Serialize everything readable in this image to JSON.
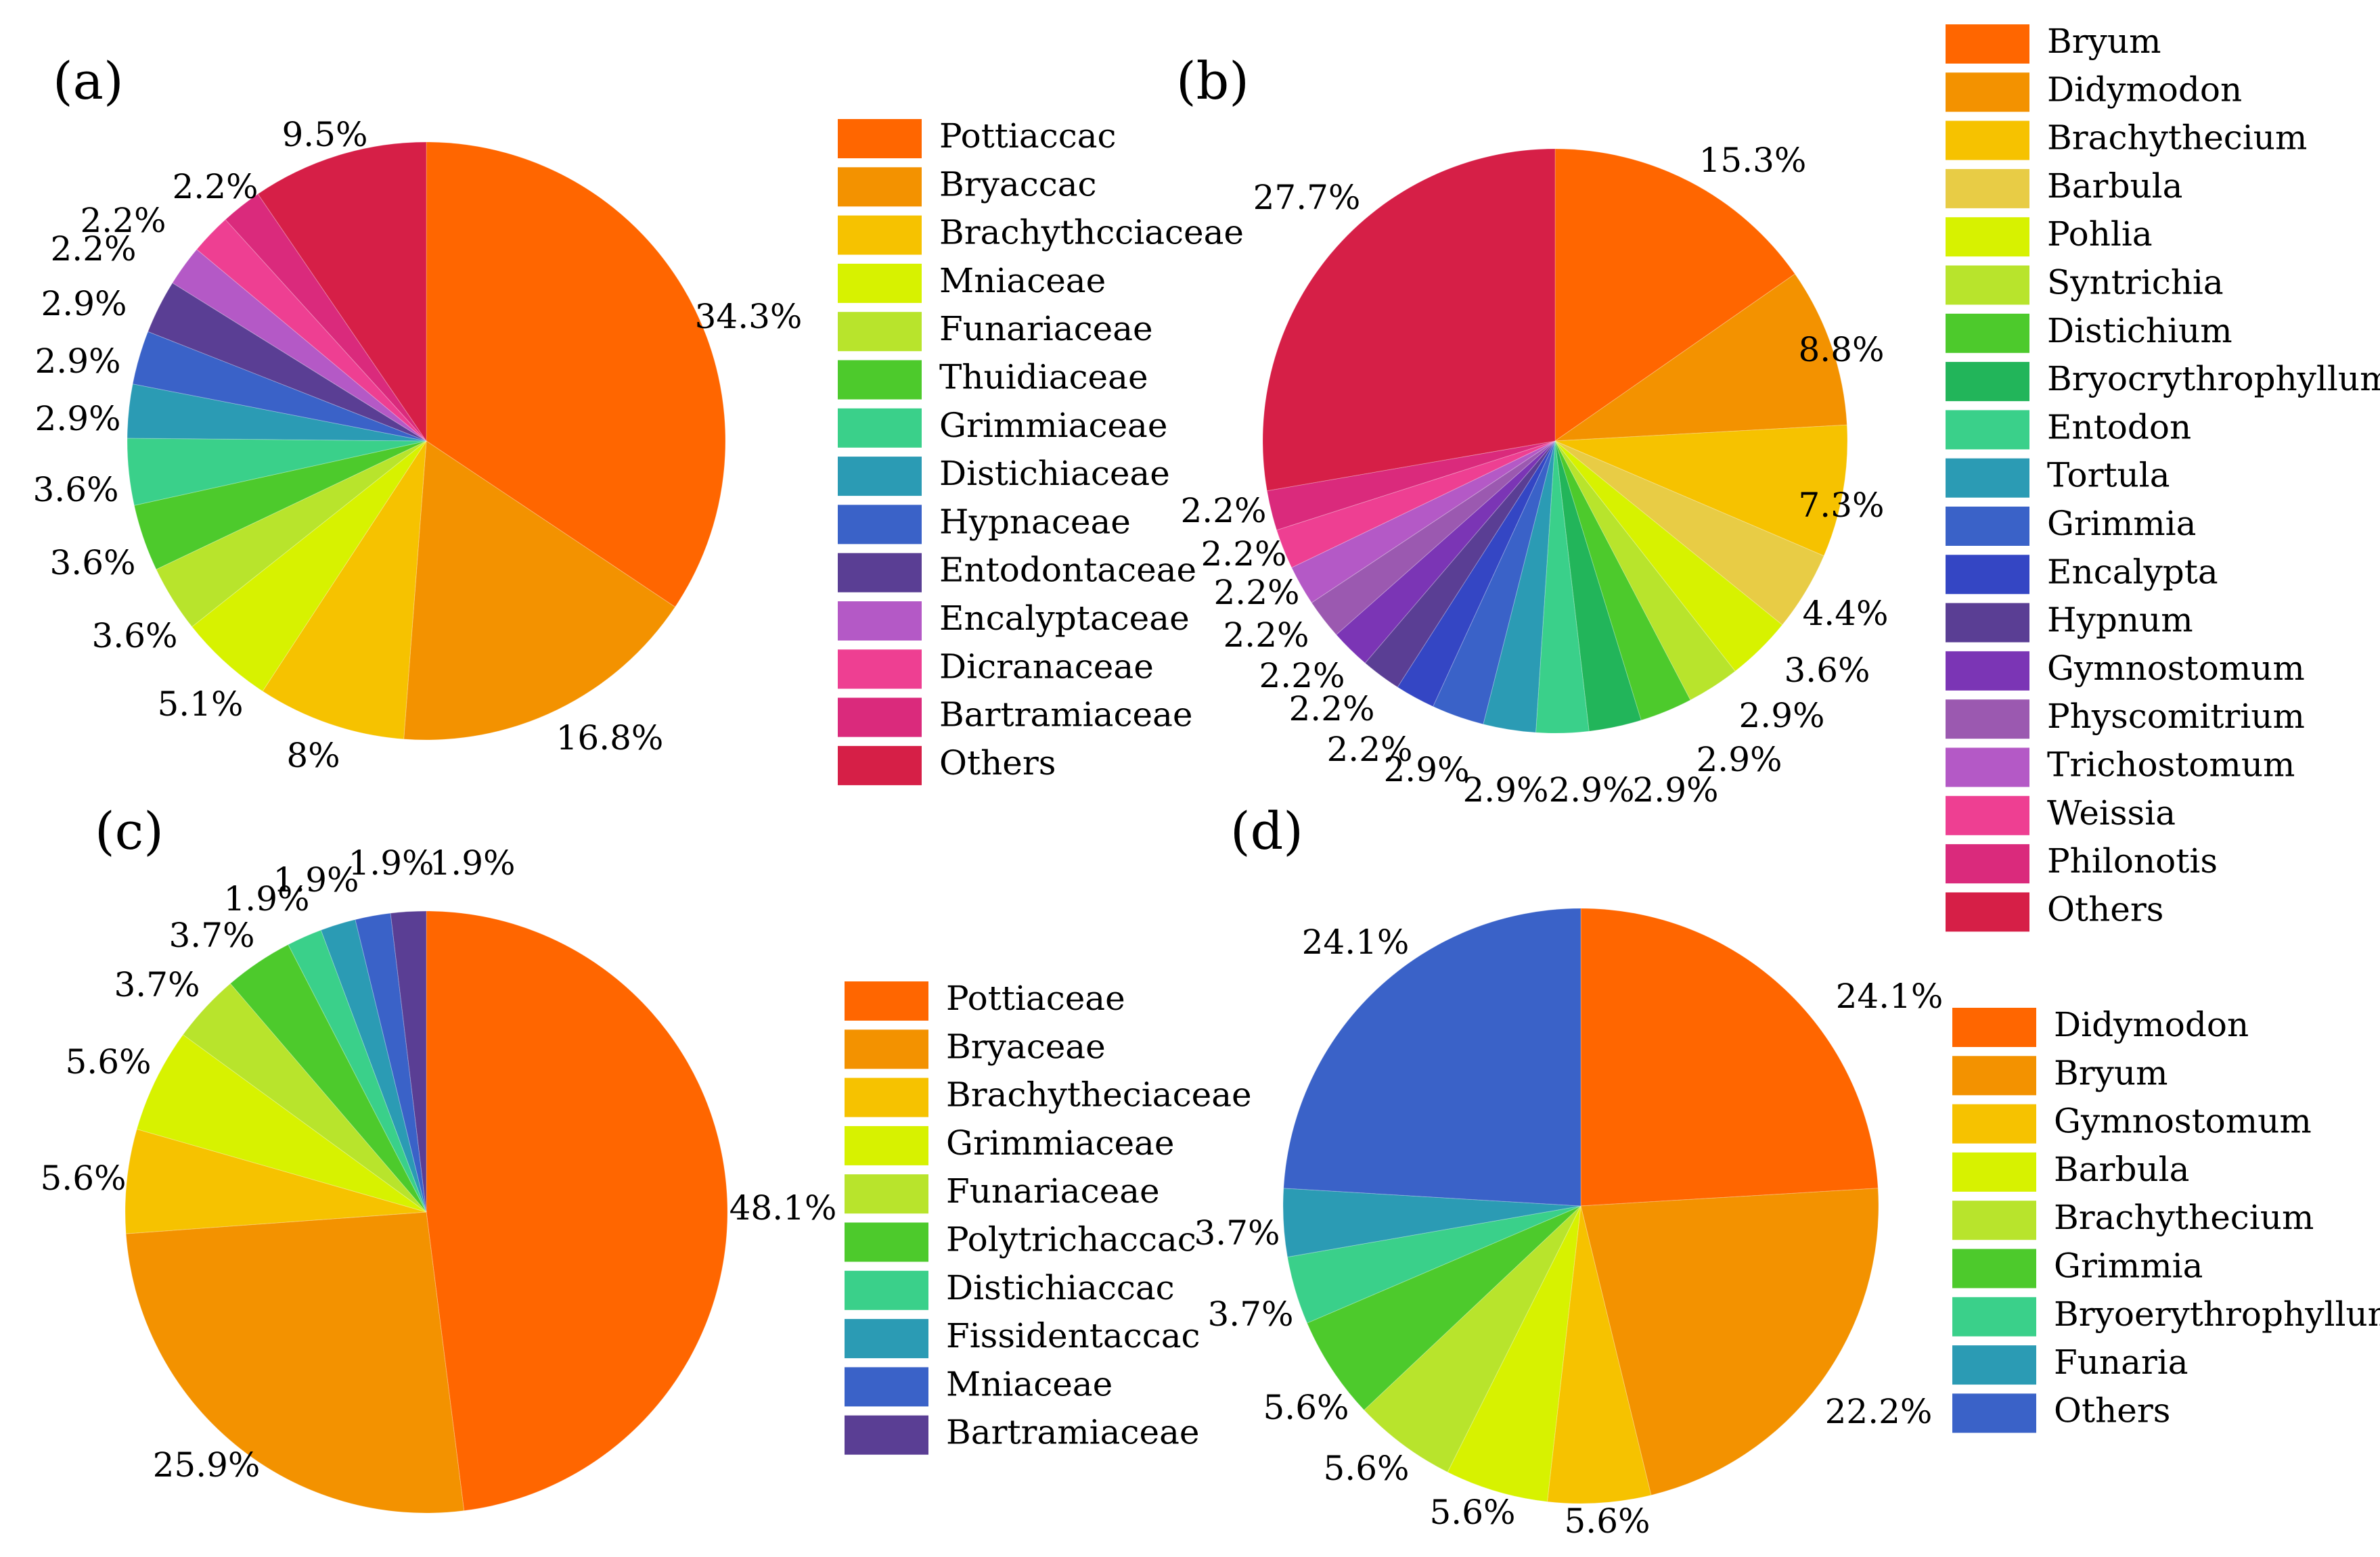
{
  "chart_data": [
    {
      "type": "pie",
      "panel": "(a)",
      "unit": "%",
      "slices": [
        {
          "label": "Pottiaccac",
          "value": 34.3,
          "display": "34.3%",
          "color": "#FF6600"
        },
        {
          "label": "Bryaccac",
          "value": 16.8,
          "display": "16.8%",
          "color": "#F39200"
        },
        {
          "label": "Brachythcciaceae",
          "value": 8,
          "display": "8%",
          "color": "#F6C200"
        },
        {
          "label": "Mniaceae",
          "value": 5.1,
          "display": "5.1%",
          "color": "#D7F200"
        },
        {
          "label": "Funariaceae",
          "value": 3.6,
          "display": "3.6%",
          "color": "#B8E42C"
        },
        {
          "label": "Thuidiaceae",
          "value": 3.6,
          "display": "3.6%",
          "color": "#4DCA2C"
        },
        {
          "label": "Grimmiaceae",
          "value": 3.6,
          "display": "3.6%",
          "color": "#3AD08A"
        },
        {
          "label": "Distichiaceae",
          "value": 2.9,
          "display": "2.9%",
          "color": "#2B9BB4"
        },
        {
          "label": "Hypnaceae",
          "value": 2.9,
          "display": "2.9%",
          "color": "#3A62C8"
        },
        {
          "label": "Entodontaceae",
          "value": 2.9,
          "display": "2.9%",
          "color": "#5A3E94"
        },
        {
          "label": "Encalyptaceae",
          "value": 2.2,
          "display": "2.2%",
          "color": "#B459C6"
        },
        {
          "label": "Dicranaceae",
          "value": 2.2,
          "display": "2.2%",
          "color": "#EE3F92"
        },
        {
          "label": "Bartramiaceae",
          "value": 2.2,
          "display": "2.2%",
          "color": "#DA2A7C"
        },
        {
          "label": "Others",
          "value": 9.5,
          "display": "9.5%",
          "color": "#D61F47"
        }
      ]
    },
    {
      "type": "pie",
      "panel": "(b)",
      "unit": "%",
      "slices": [
        {
          "label": "Bryum",
          "value": 15.3,
          "display": "15.3%",
          "color": "#FF6600"
        },
        {
          "label": "Didymodon",
          "value": 8.8,
          "display": "8.8%",
          "color": "#F39200"
        },
        {
          "label": "Brachythecium",
          "value": 7.3,
          "display": "7.3%",
          "color": "#F6C200"
        },
        {
          "label": "Barbula",
          "value": 4.4,
          "display": "4.4%",
          "color": "#E8CC45"
        },
        {
          "label": "Pohlia",
          "value": 3.6,
          "display": "3.6%",
          "color": "#D7F200"
        },
        {
          "label": "Syntrichia",
          "value": 2.9,
          "display": "2.9%",
          "color": "#B8E42C"
        },
        {
          "label": "Distichium",
          "value": 2.9,
          "display": "2.9%",
          "color": "#4DCA2C"
        },
        {
          "label": "Bryocrythrophyllum",
          "value": 2.9,
          "display": "2.9%",
          "color": "#22B55A"
        },
        {
          "label": "Entodon",
          "value": 2.9,
          "display": "2.9%",
          "color": "#3AD08A"
        },
        {
          "label": "Tortula",
          "value": 2.9,
          "display": "2.9%",
          "color": "#2B9BB4"
        },
        {
          "label": "Grimmia",
          "value": 2.9,
          "display": "2.9%",
          "color": "#3A62C8"
        },
        {
          "label": "Encalypta",
          "value": 2.2,
          "display": "2.2%",
          "color": "#3446C4"
        },
        {
          "label": "Hypnum",
          "value": 2.2,
          "display": "2.2%",
          "color": "#5A3E94"
        },
        {
          "label": "Gymnostomum",
          "value": 2.2,
          "display": "2.2%",
          "color": "#7B35B5"
        },
        {
          "label": "Physcomitrium",
          "value": 2.2,
          "display": "2.2%",
          "color": "#9B59B0"
        },
        {
          "label": "Trichostomum",
          "value": 2.2,
          "display": "2.2%",
          "color": "#B459C6"
        },
        {
          "label": "Weissia",
          "value": 2.2,
          "display": "2.2%",
          "color": "#EE3F92"
        },
        {
          "label": "Philonotis",
          "value": 2.2,
          "display": "2.2%",
          "color": "#DA2A7C"
        },
        {
          "label": "Others",
          "value": 27.7,
          "display": "27.7%",
          "color": "#D61F47"
        }
      ]
    },
    {
      "type": "pie",
      "panel": "(c)",
      "unit": "%",
      "slices": [
        {
          "label": "Pottiaceae",
          "value": 48.1,
          "display": "48.1%",
          "color": "#FF6600"
        },
        {
          "label": "Bryaceae",
          "value": 25.9,
          "display": "25.9%",
          "color": "#F39200"
        },
        {
          "label": "Brachytheciaceae",
          "value": 5.6,
          "display": "5.6%",
          "color": "#F6C200"
        },
        {
          "label": "Grimmiaceae",
          "value": 5.6,
          "display": "5.6%",
          "color": "#D7F200"
        },
        {
          "label": "Funariaceae",
          "value": 3.7,
          "display": "3.7%",
          "color": "#B8E42C"
        },
        {
          "label": "Polytrichaccac",
          "value": 3.7,
          "display": "3.7%",
          "color": "#4DCA2C"
        },
        {
          "label": "Distichiaccac",
          "value": 1.9,
          "display": "1.9%",
          "color": "#3AD08A"
        },
        {
          "label": "Fissidentaccac",
          "value": 1.9,
          "display": "1.9%",
          "color": "#2B9BB4"
        },
        {
          "label": "Mniaceae",
          "value": 1.9,
          "display": "1.9%",
          "color": "#3A62C8"
        },
        {
          "label": "Bartramiaceae",
          "value": 1.9,
          "display": "1.9%",
          "color": "#5A3E94"
        }
      ]
    },
    {
      "type": "pie",
      "panel": "(d)",
      "unit": "%",
      "slices": [
        {
          "label": "Didymodon",
          "value": 24.1,
          "display": "24.1%",
          "color": "#FF6600"
        },
        {
          "label": "Bryum",
          "value": 22.2,
          "display": "22.2%",
          "color": "#F39200"
        },
        {
          "label": "Gymnostomum",
          "value": 5.6,
          "display": "5.6%",
          "color": "#F6C200"
        },
        {
          "label": "Barbula",
          "value": 5.6,
          "display": "5.6%",
          "color": "#D7F200"
        },
        {
          "label": "Brachythecium",
          "value": 5.6,
          "display": "5.6%",
          "color": "#B8E42C"
        },
        {
          "label": "Grimmia",
          "value": 5.6,
          "display": "5.6%",
          "color": "#4DCA2C"
        },
        {
          "label": "Bryoerythrophyllum",
          "value": 3.7,
          "display": "3.7%",
          "color": "#3AD08A"
        },
        {
          "label": "Funaria",
          "value": 3.7,
          "display": "3.7%",
          "color": "#2B9BB4"
        },
        {
          "label": "Others",
          "value": 24.1,
          "display": "24.1%",
          "color": "#3A62C8"
        }
      ]
    }
  ]
}
